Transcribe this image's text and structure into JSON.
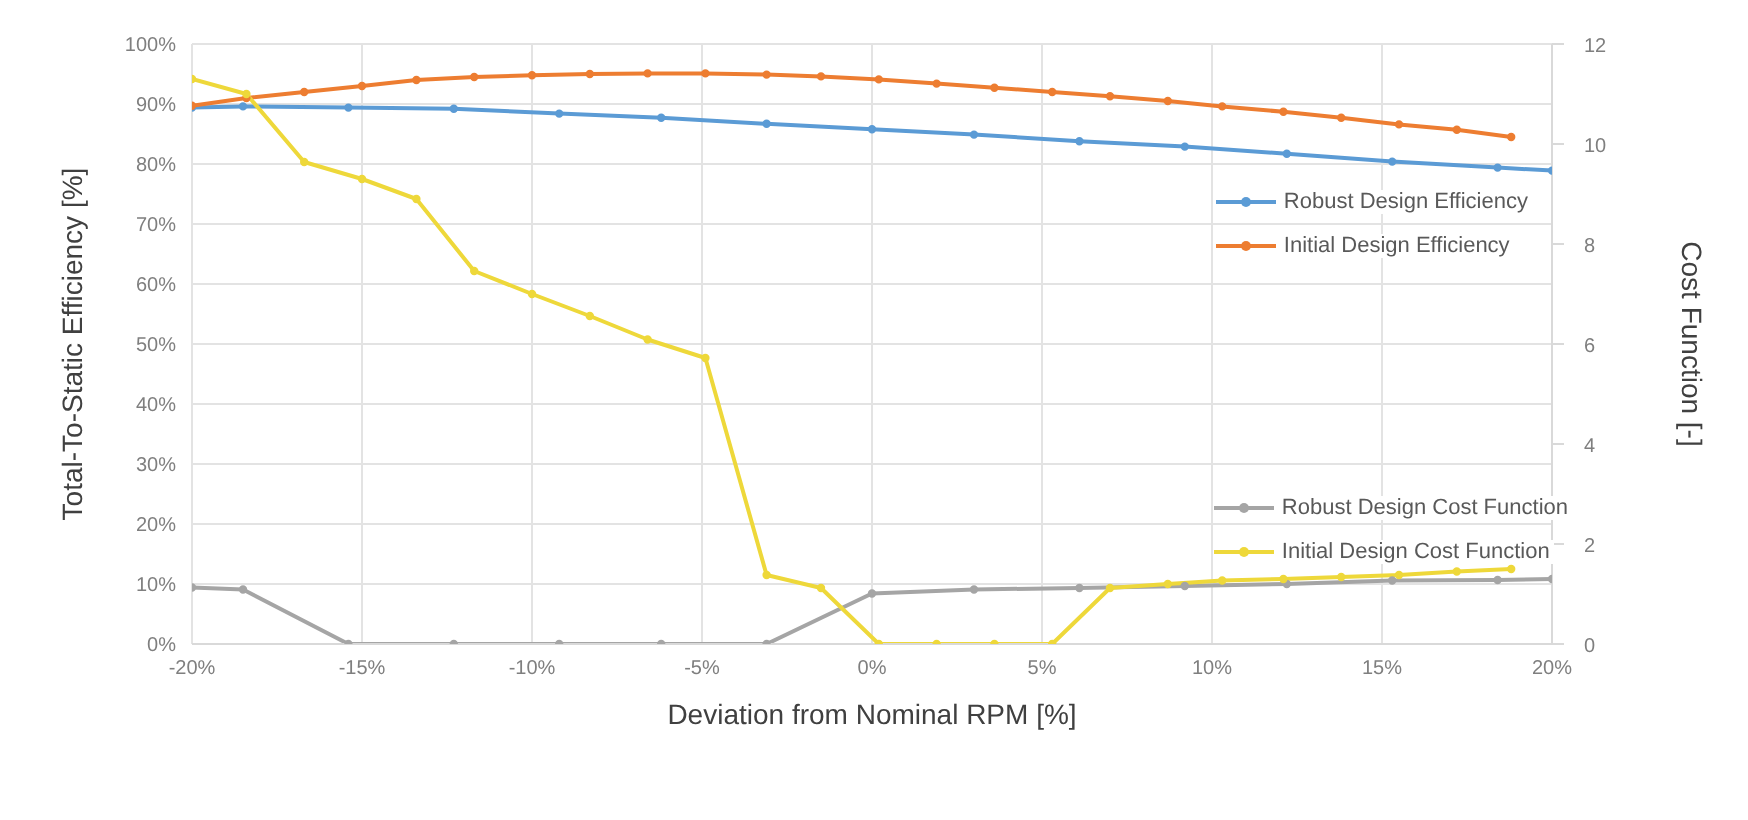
{
  "chart_data": {
    "type": "line",
    "xlabel": "Deviation from Nominal RPM [%]",
    "ylabel": "Total-To-Static Efficiency [%]",
    "y2label": "Cost Function [-]",
    "xlim": [
      -20,
      20
    ],
    "xticks": [
      {
        "value": -20,
        "label": "-20%"
      },
      {
        "value": -15,
        "label": "-15%"
      },
      {
        "value": -10,
        "label": "-10%"
      },
      {
        "value": -5,
        "label": "-5%"
      },
      {
        "value": 0,
        "label": "0%"
      },
      {
        "value": 5,
        "label": "5%"
      },
      {
        "value": 10,
        "label": "10%"
      },
      {
        "value": 15,
        "label": "15%"
      },
      {
        "value": 20,
        "label": "20%"
      }
    ],
    "ylim": [
      0,
      100
    ],
    "yticks": [
      {
        "value": 0,
        "label": "0%"
      },
      {
        "value": 10,
        "label": "10%"
      },
      {
        "value": 20,
        "label": "20%"
      },
      {
        "value": 30,
        "label": "30%"
      },
      {
        "value": 40,
        "label": "40%"
      },
      {
        "value": 50,
        "label": "50%"
      },
      {
        "value": 60,
        "label": "60%"
      },
      {
        "value": 70,
        "label": "70%"
      },
      {
        "value": 80,
        "label": "80%"
      },
      {
        "value": 90,
        "label": "90%"
      },
      {
        "value": 100,
        "label": "100%"
      }
    ],
    "y2lim": [
      0,
      12
    ],
    "y2ticks": [
      0,
      2,
      4,
      6,
      8,
      10,
      12
    ],
    "grid": true,
    "legend": "right",
    "marker": "circle",
    "line_style": "solid",
    "series": [
      {
        "name": "Robust Design  Efficiency",
        "color": "#5b9bd5",
        "x": [
          -20,
          -18.5,
          -15.4,
          -12.3,
          -9.2,
          -6.2,
          -3.1,
          0,
          3,
          6.1,
          9.2,
          12.2,
          15.3,
          18.4,
          20
        ],
        "values": [
          89.4,
          89.6,
          89.4,
          89.2,
          88.4,
          87.7,
          86.7,
          85.8,
          84.9,
          83.8,
          82.9,
          81.7,
          80.4,
          79.4,
          78.9
        ]
      },
      {
        "name": "Initial Design  Efficiency",
        "color": "#ed7d31",
        "x": [
          -20,
          -18.4,
          -16.7,
          -15,
          -13.4,
          -11.7,
          -10,
          -8.3,
          -6.6,
          -4.9,
          -3.1,
          -1.5,
          0.2,
          1.9,
          3.6,
          5.3,
          7,
          8.7,
          10.3,
          12.1,
          13.8,
          15.5,
          17.2,
          18.8
        ],
        "values": [
          89.7,
          91,
          92,
          93,
          94,
          94.5,
          94.8,
          95,
          95.1,
          95.1,
          94.9,
          94.6,
          94.1,
          93.4,
          92.7,
          92,
          91.3,
          90.5,
          89.6,
          88.7,
          87.7,
          86.6,
          85.7,
          84.5
        ]
      },
      {
        "name": "Robust Design Cost Function",
        "color": "#a5a5a5",
        "axis": "y2",
        "x": [
          -20,
          -18.5,
          -15.4,
          -12.3,
          -9.2,
          -6.2,
          -3.1,
          0,
          3,
          6.1,
          9.2,
          12.2,
          15.3,
          18.4,
          20
        ],
        "values": [
          1.13,
          1.09,
          0,
          0,
          0,
          0,
          0,
          1.01,
          1.09,
          1.12,
          1.16,
          1.2,
          1.27,
          1.28,
          1.3
        ]
      },
      {
        "name": "Initial Design Cost Function",
        "color": "#eed83a",
        "axis": "y2",
        "x": [
          -20,
          -18.4,
          -16.7,
          -15,
          -13.4,
          -11.7,
          -10,
          -8.3,
          -6.6,
          -4.9,
          -3.1,
          -1.5,
          0.2,
          1.9,
          3.6,
          5.3,
          7,
          8.7,
          10.3,
          12.1,
          13.8,
          15.5,
          17.2,
          18.8
        ],
        "values": [
          11.3,
          11,
          9.64,
          9.3,
          8.9,
          7.46,
          7,
          6.56,
          6.09,
          5.72,
          1.38,
          1.12,
          0,
          0,
          0,
          0,
          1.12,
          1.2,
          1.27,
          1.3,
          1.34,
          1.38,
          1.45,
          1.5
        ]
      }
    ]
  }
}
